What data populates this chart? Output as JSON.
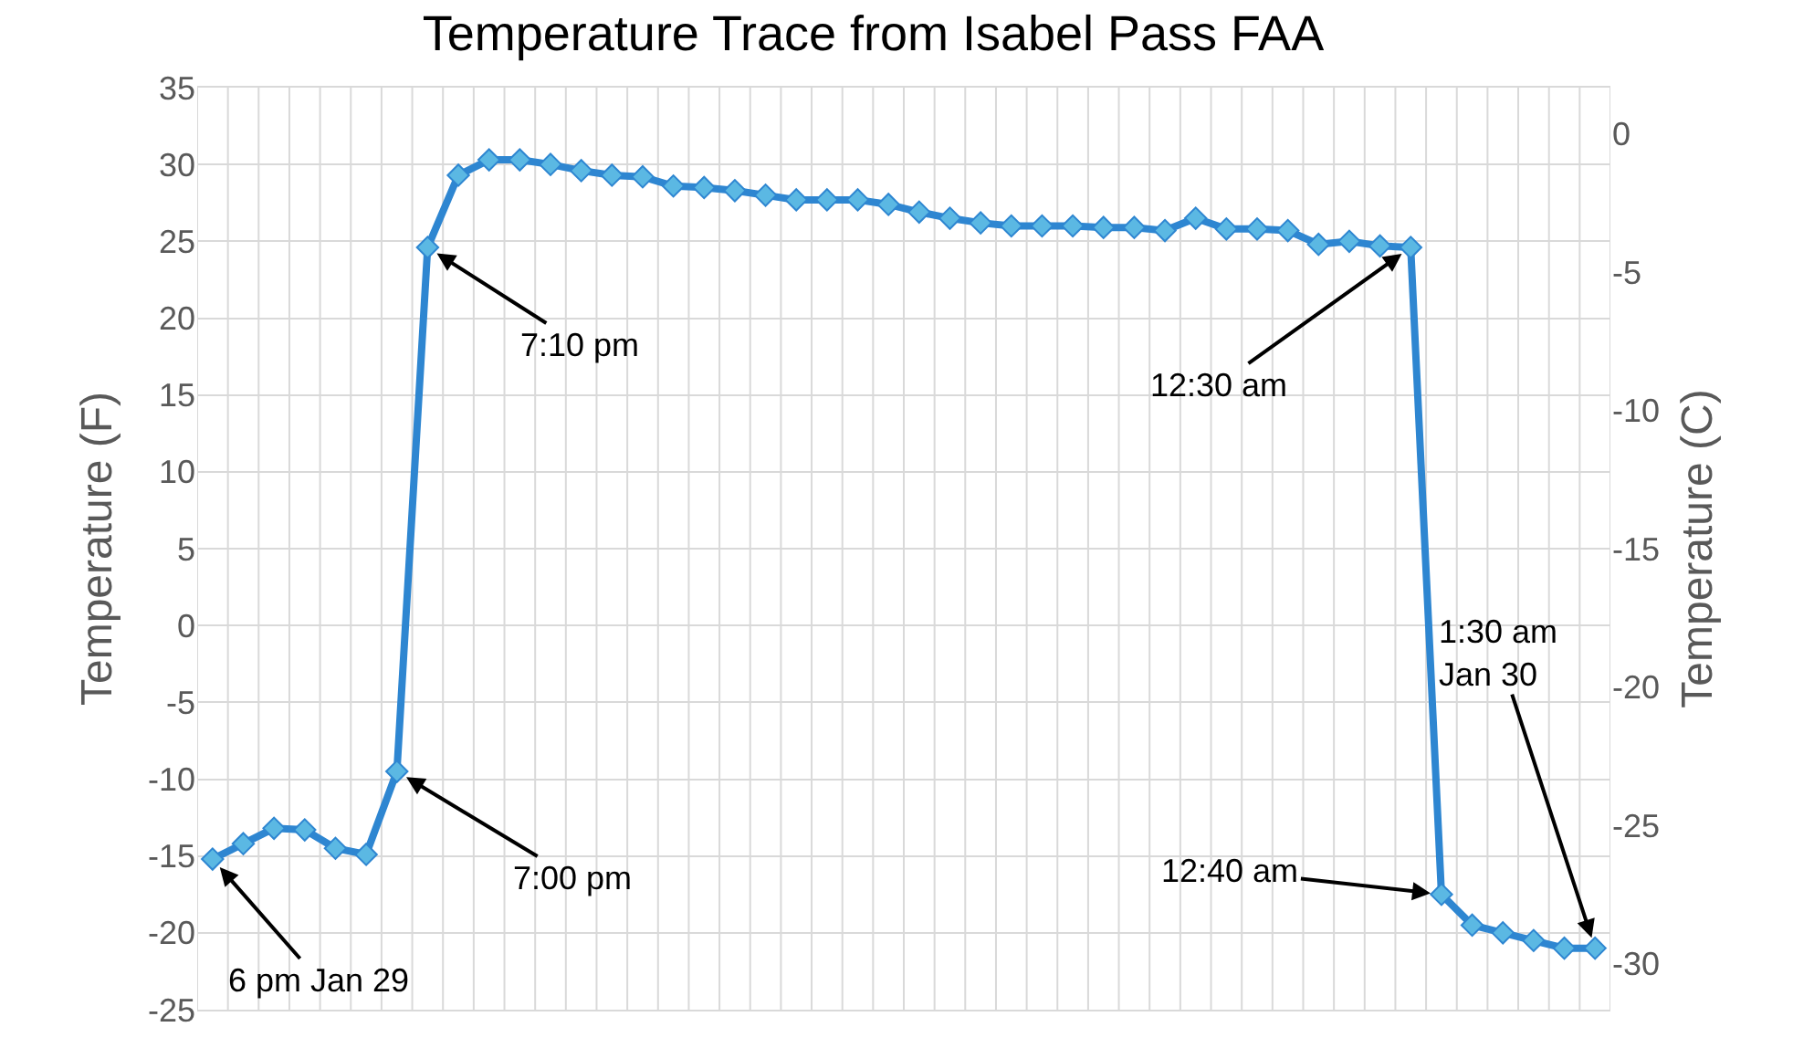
{
  "chart_data": {
    "type": "line",
    "title": "Temperature Trace from Isabel Pass FAA",
    "ylabel": "Temperature (F)",
    "y2label": "Temperature (C)",
    "categories": [
      null,
      null,
      null,
      null,
      null,
      null,
      null,
      null,
      null,
      null,
      null,
      null,
      null,
      null,
      null,
      null,
      null,
      null,
      null,
      null,
      null,
      null,
      null,
      null,
      null,
      null,
      null,
      null,
      null,
      null,
      null,
      null,
      null,
      null,
      null,
      null,
      null,
      null,
      null,
      null,
      null,
      null,
      null,
      null,
      null,
      null
    ],
    "series": [
      {
        "color": "#2e86d1",
        "values": [
          -15.2,
          -14.2,
          -13.2,
          -13.3,
          -14.5,
          -14.9,
          -9.5,
          24.6,
          29.3,
          30.3,
          30.3,
          30.0,
          29.6,
          29.3,
          29.2,
          28.6,
          28.5,
          28.3,
          28.0,
          27.7,
          27.7,
          27.7,
          27.4,
          26.9,
          26.5,
          26.2,
          26.0,
          26.0,
          26.0,
          25.9,
          25.9,
          25.7,
          26.5,
          25.8,
          25.8,
          25.7,
          24.8,
          25.0,
          24.7,
          24.6,
          -17.5,
          -19.5,
          -20.0,
          -20.5,
          -21.0,
          -21.0
        ]
      }
    ],
    "marker": "diamond",
    "line_style": "solid",
    "grid": true,
    "ylim": [
      -25,
      35
    ],
    "yticks": [
      -25,
      -20,
      -15,
      -10,
      -5,
      0,
      5,
      10,
      15,
      20,
      25,
      30,
      35
    ],
    "y2lim": [
      -31.667,
      1.667
    ],
    "y2ticks": [
      -30,
      -25,
      -20,
      -15,
      -10,
      -5,
      0
    ],
    "annotations": [
      "6 pm Jan 29",
      "7:00 pm",
      "7:10 pm",
      "12:30 am",
      "12:40 am",
      "1:30 am\nJan 30"
    ]
  }
}
